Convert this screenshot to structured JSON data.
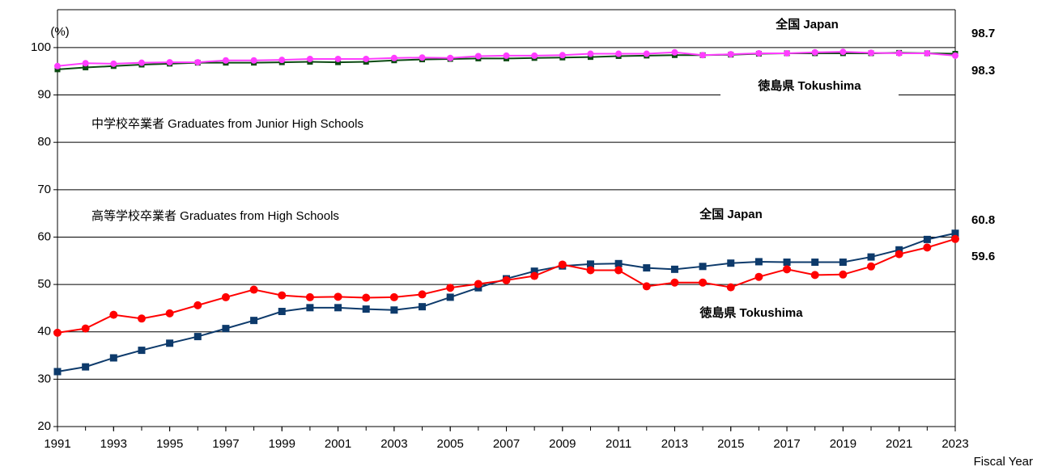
{
  "chart_data": {
    "type": "line",
    "y_label": "(%)",
    "x_label": "Fiscal Year",
    "annotations": [
      "中学校卒業者  Graduates from Junior High Schools",
      "高等学校卒業者  Graduates from High Schools"
    ],
    "x": [
      1991,
      1992,
      1993,
      1994,
      1995,
      1996,
      1997,
      1998,
      1999,
      2000,
      2001,
      2002,
      2003,
      2004,
      2005,
      2006,
      2007,
      2008,
      2009,
      2010,
      2011,
      2012,
      2013,
      2014,
      2015,
      2016,
      2017,
      2018,
      2019,
      2020,
      2021,
      2022,
      2023
    ],
    "xlim": [
      1991,
      2023
    ],
    "xticks": [
      1991,
      1993,
      1995,
      1997,
      1999,
      2001,
      2003,
      2005,
      2007,
      2009,
      2011,
      2013,
      2015,
      2017,
      2019,
      2021,
      2023
    ],
    "ylim": [
      20,
      108
    ],
    "yticks": [
      20,
      30,
      40,
      50,
      60,
      70,
      80,
      90,
      100
    ],
    "grid": true,
    "series": [
      {
        "name": "全国 Japan",
        "color": "#0b4a12",
        "marker": "square",
        "values": [
          95.4,
          95.8,
          96.1,
          96.4,
          96.6,
          96.8,
          96.8,
          96.8,
          96.9,
          97.0,
          96.9,
          97.0,
          97.3,
          97.5,
          97.6,
          97.7,
          97.7,
          97.8,
          97.9,
          98.0,
          98.2,
          98.3,
          98.4,
          98.4,
          98.5,
          98.7,
          98.8,
          98.8,
          98.8,
          98.8,
          98.9,
          98.8,
          98.7
        ]
      },
      {
        "name": "徳島県  Tokushima",
        "color": "#ff3dff",
        "marker": "circle",
        "values": [
          96.1,
          96.7,
          96.6,
          96.8,
          96.9,
          96.9,
          97.3,
          97.3,
          97.4,
          97.6,
          97.6,
          97.6,
          97.8,
          97.9,
          97.8,
          98.2,
          98.3,
          98.3,
          98.4,
          98.7,
          98.7,
          98.7,
          99.0,
          98.4,
          98.6,
          98.8,
          98.8,
          99.0,
          99.1,
          98.9,
          98.8,
          98.8,
          98.3
        ]
      },
      {
        "name": "全国 Japan",
        "color": "#0d3a6b",
        "marker": "square",
        "values": [
          31.6,
          32.6,
          34.5,
          36.1,
          37.6,
          39.0,
          40.7,
          42.4,
          44.3,
          45.1,
          45.1,
          44.8,
          44.6,
          45.3,
          47.3,
          49.3,
          51.2,
          52.8,
          53.9,
          54.3,
          54.4,
          53.5,
          53.2,
          53.8,
          54.5,
          54.8,
          54.7,
          54.7,
          54.7,
          55.8,
          57.3,
          59.5,
          60.8
        ]
      },
      {
        "name": "徳島県  Tokushima",
        "color": "#ff0000",
        "marker": "circle",
        "values": [
          39.8,
          40.7,
          43.6,
          42.8,
          43.9,
          45.6,
          47.3,
          48.9,
          47.7,
          47.3,
          47.4,
          47.2,
          47.3,
          47.9,
          49.3,
          50.1,
          50.9,
          51.8,
          54.2,
          53.0,
          53.0,
          49.6,
          50.4,
          50.4,
          49.4,
          51.6,
          53.2,
          52.0,
          52.1,
          53.8,
          56.4,
          57.8,
          59.6
        ]
      }
    ]
  }
}
